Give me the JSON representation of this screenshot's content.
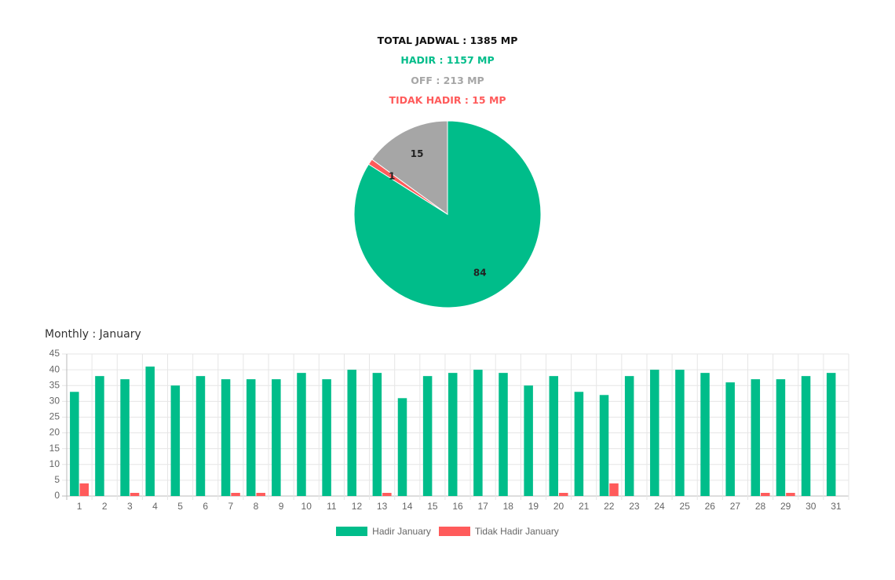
{
  "summary": {
    "total": "TOTAL JADWAL : 1385 MP",
    "hadir": "HADIR : 1157 MP",
    "off": "OFF : 213 MP",
    "tidak_hadir": "TIDAK HADIR : 15 MP"
  },
  "colors": {
    "hadir": "#00bd8a",
    "off": "#a6a6a6",
    "tidak_hadir": "#ff5b5b",
    "total": "#111111"
  },
  "monthly_title": "Monthly : January",
  "chart_data": [
    {
      "type": "pie",
      "title": "",
      "slices": [
        {
          "label": "HADIR",
          "value": 84,
          "data_label": "84",
          "color": "#00bd8a"
        },
        {
          "label": "TIDAK HADIR",
          "value": 1,
          "data_label": "1",
          "color": "#ff5b5b"
        },
        {
          "label": "OFF",
          "value": 15,
          "data_label": "15",
          "color": "#a6a6a6"
        }
      ]
    },
    {
      "type": "bar",
      "title": "Monthly : January",
      "categories": [
        "1",
        "2",
        "3",
        "4",
        "5",
        "6",
        "7",
        "8",
        "9",
        "10",
        "11",
        "12",
        "13",
        "14",
        "15",
        "16",
        "17",
        "18",
        "19",
        "20",
        "21",
        "22",
        "23",
        "24",
        "25",
        "26",
        "27",
        "28",
        "29",
        "30",
        "31"
      ],
      "series": [
        {
          "name": "Hadir January",
          "color": "#00bd8a",
          "values": [
            33,
            38,
            37,
            41,
            35,
            38,
            37,
            37,
            37,
            39,
            37,
            40,
            39,
            31,
            38,
            39,
            40,
            39,
            35,
            38,
            33,
            32,
            38,
            40,
            40,
            39,
            36,
            37,
            37,
            38,
            39
          ]
        },
        {
          "name": "Tidak Hadir January",
          "color": "#ff5b5b",
          "values": [
            4,
            0,
            1,
            0,
            0,
            0,
            1,
            1,
            0,
            0,
            0,
            0,
            1,
            0,
            0,
            0,
            0,
            0,
            0,
            1,
            0,
            4,
            0,
            0,
            0,
            0,
            0,
            1,
            1,
            0,
            0
          ]
        }
      ],
      "ylim": [
        0,
        45
      ],
      "yticks": [
        0,
        5,
        10,
        15,
        20,
        25,
        30,
        35,
        40,
        45
      ],
      "grid": true,
      "legend": "bottom"
    }
  ]
}
